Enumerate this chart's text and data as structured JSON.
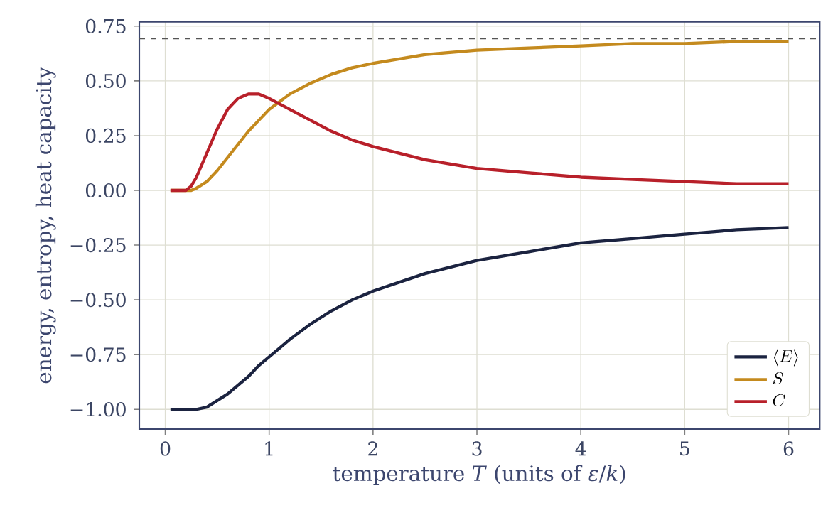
{
  "chart_data": {
    "type": "line",
    "xlabel": "temperature *T* (units of *ε*/*k*)",
    "ylabel": "energy, entropy, heat capacity",
    "x": [
      0.05,
      0.2,
      0.25,
      0.3,
      0.4,
      0.5,
      0.6,
      0.7,
      0.8,
      0.9,
      1.0,
      1.2,
      1.4,
      1.6,
      1.8,
      2.0,
      2.5,
      3.0,
      3.5,
      4.0,
      4.5,
      5.0,
      5.5,
      6.0
    ],
    "series": [
      {
        "name": "\\langle E\\rangle",
        "color": "#1b2340",
        "values": [
          -1.0,
          -1.0,
          -1.0,
          -1.0,
          -0.99,
          -0.96,
          -0.93,
          -0.89,
          -0.85,
          -0.8,
          -0.76,
          -0.68,
          -0.61,
          -0.55,
          -0.5,
          -0.46,
          -0.38,
          -0.32,
          -0.28,
          -0.24,
          -0.22,
          -0.2,
          -0.18,
          -0.17
        ]
      },
      {
        "name": "S",
        "color": "#c48a1e",
        "values": [
          0.0,
          0.0,
          0.0,
          0.01,
          0.04,
          0.09,
          0.15,
          0.21,
          0.27,
          0.32,
          0.37,
          0.44,
          0.49,
          0.53,
          0.56,
          0.58,
          0.62,
          0.64,
          0.65,
          0.66,
          0.67,
          0.67,
          0.68,
          0.68
        ]
      },
      {
        "name": "C",
        "color": "#b8202a",
        "values": [
          0.0,
          0.0,
          0.02,
          0.06,
          0.17,
          0.28,
          0.37,
          0.42,
          0.44,
          0.44,
          0.42,
          0.37,
          0.32,
          0.27,
          0.23,
          0.2,
          0.14,
          0.1,
          0.08,
          0.06,
          0.05,
          0.04,
          0.03,
          0.03
        ]
      }
    ],
    "xlim": [
      -0.25,
      6.3
    ],
    "ylim": [
      -1.09,
      0.77
    ],
    "xticks": [
      0,
      1,
      2,
      3,
      4,
      5,
      6
    ],
    "yticks": [
      {
        "value": -1.0,
        "label": "−1.00"
      },
      {
        "value": -0.75,
        "label": "−0.75"
      },
      {
        "value": -0.5,
        "label": "−0.50"
      },
      {
        "value": -0.25,
        "label": "−0.25"
      },
      {
        "value": 0,
        "label": "0.00"
      },
      {
        "value": 0.25,
        "label": "0.25"
      },
      {
        "value": 0.5,
        "label": "0.50"
      },
      {
        "value": 0.75,
        "label": "0.75"
      }
    ],
    "ref_lines": [
      {
        "axis": "y",
        "value": 0.693,
        "color": "#555555",
        "line_style": "dashed"
      }
    ],
    "grid": true,
    "legend": "bottom right",
    "marker": "none",
    "line_style": "solid"
  }
}
